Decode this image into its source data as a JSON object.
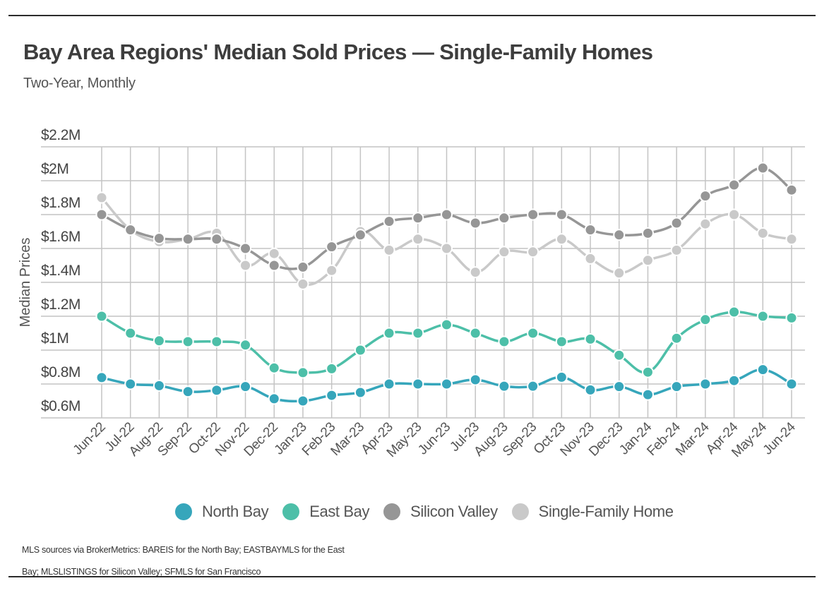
{
  "header": {
    "title": "Bay Area Regions' Median Sold Prices — Single-Family Homes",
    "subtitle": "Two-Year, Monthly"
  },
  "footnote": "MLS sources via BrokerMetrics: BAREIS for the North Bay; EASTBAYMLS for the East Bay; MLSLISTINGS for Silicon Valley; SFMLS for San Francisco",
  "chart_data": {
    "type": "line",
    "title": "Bay Area Regions' Median Sold Prices — Single-Family Homes",
    "subtitle": "Two-Year, Monthly",
    "xlabel": "",
    "ylabel": "Median Prices",
    "ylim": [
      0.6,
      2.2
    ],
    "yticks": [
      0.6,
      0.8,
      1.0,
      1.2,
      1.4,
      1.6,
      1.8,
      2.0,
      2.2
    ],
    "ytick_labels": [
      "$0.6M",
      "$0.8M",
      "$1M",
      "$1.2M",
      "$1.4M",
      "$1.6M",
      "$1.8M",
      "$2M",
      "$2.2M"
    ],
    "units": "millions USD",
    "grid": true,
    "legend_position": "bottom",
    "x": [
      "Jun-22",
      "Jul-22",
      "Aug-22",
      "Sep-22",
      "Oct-22",
      "Nov-22",
      "Dec-22",
      "Jan-23",
      "Feb-23",
      "Mar-23",
      "Apr-23",
      "May-23",
      "Jun-23",
      "Jul-23",
      "Aug-23",
      "Sep-23",
      "Oct-23",
      "Nov-23",
      "Dec-23",
      "Jan-24",
      "Feb-24",
      "Mar-24",
      "Apr-24",
      "May-24",
      "Jun-24"
    ],
    "series": [
      {
        "name": "North Bay",
        "color": "#36a6bb",
        "values": [
          0.838,
          0.8,
          0.79,
          0.755,
          0.763,
          0.785,
          0.713,
          0.7,
          0.733,
          0.75,
          0.8,
          0.8,
          0.8,
          0.825,
          0.787,
          0.787,
          0.84,
          0.765,
          0.785,
          0.737,
          0.785,
          0.8,
          0.82,
          0.885,
          0.8
        ]
      },
      {
        "name": "East Bay",
        "color": "#4dbfa8",
        "values": [
          1.2,
          1.1,
          1.055,
          1.05,
          1.05,
          1.03,
          0.895,
          0.867,
          0.89,
          1.0,
          1.1,
          1.1,
          1.15,
          1.1,
          1.05,
          1.1,
          1.05,
          1.065,
          0.97,
          0.87,
          1.07,
          1.18,
          1.225,
          1.2,
          1.19
        ]
      },
      {
        "name": "Silicon Valley",
        "color": "#969696",
        "values": [
          1.8,
          1.71,
          1.66,
          1.655,
          1.655,
          1.6,
          1.5,
          1.49,
          1.61,
          1.68,
          1.76,
          1.78,
          1.8,
          1.75,
          1.78,
          1.8,
          1.8,
          1.71,
          1.68,
          1.69,
          1.75,
          1.91,
          1.975,
          2.075,
          1.945
        ]
      },
      {
        "name": "Single-Family Home",
        "color": "#c9c9c9",
        "values": [
          1.9,
          1.71,
          1.64,
          1.655,
          1.69,
          1.5,
          1.57,
          1.39,
          1.47,
          1.7,
          1.59,
          1.655,
          1.6,
          1.46,
          1.58,
          1.58,
          1.655,
          1.54,
          1.455,
          1.53,
          1.59,
          1.745,
          1.8,
          1.69,
          1.655
        ]
      }
    ]
  }
}
